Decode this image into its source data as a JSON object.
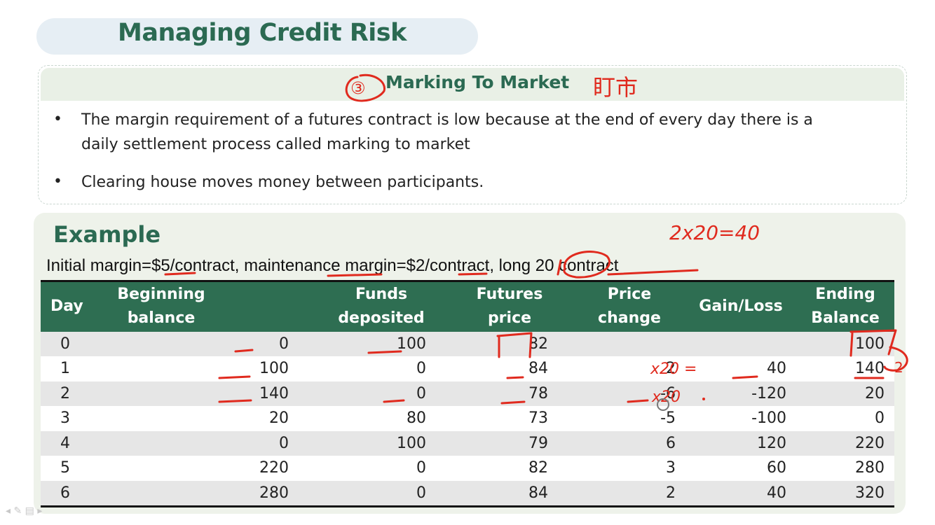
{
  "slide": {
    "title": "Managing Credit Risk",
    "section": {
      "heading": "Marking To Market",
      "bullets": [
        "The margin requirement of a futures contract is low because at the end of every day there is a",
        "daily settlement process called marking to market",
        "Clearing house moves money between participants."
      ]
    },
    "example": {
      "heading": "Example",
      "description": "Initial margin=$5/contract,  maintenance margin=$2/contract, long 20 contract"
    },
    "table": {
      "headers": [
        [
          "Day"
        ],
        [
          "Beginning",
          "balance"
        ],
        [
          "Funds",
          "deposited"
        ],
        [
          "Futures",
          "price"
        ],
        [
          "Price",
          "change"
        ],
        [
          "Gain/Loss"
        ],
        [
          "Ending",
          "Balance"
        ]
      ],
      "rows": [
        [
          "0",
          "0",
          "100",
          "82",
          "",
          "",
          "100"
        ],
        [
          "1",
          "100",
          "0",
          "84",
          "2",
          "40",
          "140"
        ],
        [
          "2",
          "140",
          "0",
          "78",
          "-6",
          "-120",
          "20"
        ],
        [
          "3",
          "20",
          "80",
          "73",
          "-5",
          "-100",
          "0"
        ],
        [
          "4",
          "0",
          "100",
          "79",
          "6",
          "120",
          "220"
        ],
        [
          "5",
          "220",
          "0",
          "82",
          "3",
          "60",
          "280"
        ],
        [
          "6",
          "280",
          "0",
          "84",
          "2",
          "40",
          "320"
        ]
      ]
    },
    "annotations": {
      "circled_number": "③",
      "chinese_note": "盯市",
      "calc_note": "2x20=40",
      "row1_note": "x20 =",
      "row2_note": "x20",
      "ending_note": "2"
    }
  },
  "colors": {
    "title_green": "#2b6a52",
    "header_green": "#2e6e52",
    "ink_red": "#e02a1e",
    "stripe_gray": "#e6e6e6"
  }
}
